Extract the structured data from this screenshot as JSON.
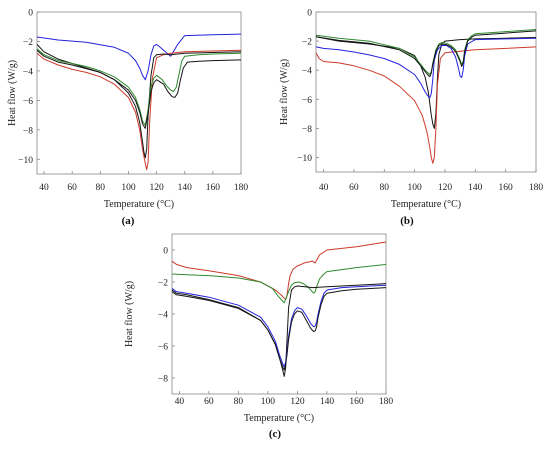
{
  "colors": {
    "blue": "#2222dd",
    "red": "#cc3a2a",
    "green": "#2e8b2e",
    "black": "#151515"
  },
  "chart_data": [
    {
      "type": "line",
      "panel_label": "(a)",
      "xlabel": "Temperature (°C)",
      "ylabel": "Heat flow (W/g)",
      "xlim": [
        35,
        180
      ],
      "ylim": [
        -11,
        0
      ],
      "xticks": [
        40,
        60,
        80,
        100,
        120,
        140,
        160,
        180
      ],
      "yticks": [
        0,
        -2,
        -4,
        -6,
        -8,
        -10
      ],
      "grid": false,
      "series": [
        {
          "color": "blue",
          "x": [
            35,
            50,
            70,
            90,
            100,
            105,
            108,
            110,
            112,
            114,
            116,
            118,
            120,
            122,
            125,
            130,
            135,
            140,
            160,
            180
          ],
          "y": [
            -1.7,
            -1.9,
            -2.05,
            -2.4,
            -2.8,
            -3.3,
            -3.8,
            -4.3,
            -4.6,
            -4.0,
            -2.9,
            -2.3,
            -2.2,
            -2.35,
            -2.6,
            -3.0,
            -2.2,
            -1.6,
            -1.55,
            -1.5
          ]
        },
        {
          "color": "red",
          "x": [
            35,
            40,
            50,
            60,
            70,
            80,
            90,
            100,
            105,
            108,
            110,
            112,
            113,
            114,
            115,
            117,
            120,
            125,
            130,
            140,
            160,
            180
          ],
          "y": [
            -2.8,
            -3.2,
            -3.6,
            -3.9,
            -4.1,
            -4.4,
            -4.9,
            -5.8,
            -6.8,
            -8.0,
            -9.3,
            -10.3,
            -10.7,
            -10.2,
            -7.5,
            -4.5,
            -3.1,
            -2.9,
            -2.8,
            -2.7,
            -2.65,
            -2.6
          ]
        },
        {
          "color": "black",
          "x": [
            35,
            40,
            50,
            60,
            70,
            80,
            90,
            100,
            105,
            108,
            110,
            111,
            112,
            113,
            114,
            116,
            118,
            120,
            125,
            130,
            140,
            160,
            180
          ],
          "y": [
            -2.2,
            -2.7,
            -3.2,
            -3.5,
            -3.8,
            -4.1,
            -4.6,
            -5.5,
            -6.4,
            -7.5,
            -8.8,
            -9.5,
            -9.9,
            -9.3,
            -7.0,
            -4.3,
            -3.1,
            -2.9,
            -2.85,
            -2.9,
            -2.8,
            -2.75,
            -2.7
          ]
        },
        {
          "color": "green",
          "x": [
            35,
            40,
            50,
            60,
            70,
            80,
            90,
            100,
            105,
            108,
            110,
            112,
            114,
            116,
            118,
            120,
            124,
            127,
            130,
            132,
            134,
            136,
            138,
            140,
            150,
            160,
            180
          ],
          "y": [
            -2.5,
            -2.9,
            -3.3,
            -3.5,
            -3.7,
            -4.0,
            -4.4,
            -5.1,
            -5.8,
            -6.6,
            -7.4,
            -7.7,
            -6.6,
            -5.0,
            -4.5,
            -4.3,
            -4.6,
            -5.0,
            -5.3,
            -5.4,
            -5.1,
            -4.2,
            -3.3,
            -3.0,
            -2.9,
            -2.85,
            -2.8
          ]
        },
        {
          "color": "black",
          "x": [
            35,
            40,
            50,
            60,
            70,
            80,
            90,
            100,
            105,
            108,
            110,
            112,
            114,
            116,
            118,
            120,
            125,
            128,
            131,
            133,
            135,
            137,
            139,
            142,
            150,
            160,
            180
          ],
          "y": [
            -2.6,
            -3.0,
            -3.4,
            -3.6,
            -3.85,
            -4.1,
            -4.6,
            -5.3,
            -6.0,
            -6.8,
            -7.6,
            -7.9,
            -6.9,
            -5.4,
            -4.8,
            -4.6,
            -4.9,
            -5.4,
            -5.75,
            -5.8,
            -5.5,
            -4.6,
            -3.8,
            -3.4,
            -3.35,
            -3.3,
            -3.25
          ]
        }
      ]
    },
    {
      "type": "line",
      "panel_label": "(b)",
      "xlabel": "Temperature (°C)",
      "ylabel": "Heat flow (W/g)",
      "xlim": [
        35,
        180
      ],
      "ylim": [
        -11,
        0
      ],
      "xticks": [
        40,
        60,
        80,
        100,
        120,
        140,
        160,
        180
      ],
      "yticks": [
        0,
        -2,
        -4,
        -6,
        -8,
        -10
      ],
      "grid": false,
      "series": [
        {
          "color": "black",
          "x": [
            35,
            50,
            70,
            90,
            100,
            104,
            107,
            109,
            110,
            111,
            112,
            113,
            114,
            115,
            116,
            118,
            120,
            130,
            140,
            160,
            180
          ],
          "y": [
            -1.7,
            -2.0,
            -2.2,
            -2.5,
            -3.0,
            -3.7,
            -4.5,
            -5.5,
            -6.3,
            -7.1,
            -7.7,
            -8.0,
            -7.0,
            -4.6,
            -2.9,
            -2.2,
            -2.0,
            -1.9,
            -1.85,
            -1.8,
            -1.75
          ]
        },
        {
          "color": "red",
          "x": [
            35,
            37,
            40,
            50,
            60,
            70,
            80,
            90,
            100,
            105,
            108,
            110,
            111,
            112,
            113,
            114,
            115,
            117,
            120,
            130,
            140,
            160,
            180
          ],
          "y": [
            -2.8,
            -3.2,
            -3.4,
            -3.5,
            -3.7,
            -4.0,
            -4.4,
            -5.1,
            -6.1,
            -7.1,
            -8.2,
            -9.3,
            -10.0,
            -10.4,
            -10.0,
            -8.0,
            -5.0,
            -3.2,
            -2.8,
            -2.7,
            -2.6,
            -2.5,
            -2.4
          ]
        },
        {
          "color": "blue",
          "x": [
            35,
            40,
            50,
            60,
            70,
            80,
            90,
            100,
            104,
            107,
            109,
            110,
            111,
            112,
            113,
            115,
            118,
            121,
            124,
            127,
            129,
            130,
            131,
            132,
            133,
            135,
            140,
            160,
            180
          ],
          "y": [
            -2.4,
            -2.5,
            -2.6,
            -2.75,
            -2.95,
            -3.2,
            -3.6,
            -4.3,
            -4.9,
            -5.5,
            -5.8,
            -5.9,
            -5.6,
            -4.6,
            -3.3,
            -2.6,
            -2.3,
            -2.3,
            -2.5,
            -3.1,
            -3.9,
            -4.4,
            -4.5,
            -4.0,
            -3.0,
            -2.2,
            -1.9,
            -1.85,
            -1.8
          ]
        },
        {
          "color": "green",
          "x": [
            35,
            50,
            70,
            90,
            100,
            104,
            107,
            109,
            110,
            111,
            112,
            114,
            116,
            118,
            121,
            124,
            127,
            130,
            131,
            132,
            133,
            135,
            138,
            140,
            160,
            180
          ],
          "y": [
            -1.6,
            -1.8,
            -2.0,
            -2.5,
            -3.1,
            -3.6,
            -4.0,
            -4.2,
            -4.3,
            -4.1,
            -3.5,
            -2.6,
            -2.2,
            -2.1,
            -2.15,
            -2.3,
            -2.6,
            -3.3,
            -3.6,
            -3.4,
            -2.6,
            -1.9,
            -1.6,
            -1.5,
            -1.35,
            -1.2
          ]
        },
        {
          "color": "black",
          "x": [
            35,
            50,
            70,
            90,
            100,
            104,
            107,
            109,
            110,
            111,
            112,
            114,
            116,
            118,
            121,
            124,
            127,
            130,
            131,
            132,
            133,
            135,
            138,
            140,
            160,
            180
          ],
          "y": [
            -1.7,
            -1.95,
            -2.15,
            -2.6,
            -3.2,
            -3.7,
            -4.1,
            -4.35,
            -4.45,
            -4.2,
            -3.6,
            -2.7,
            -2.3,
            -2.2,
            -2.25,
            -2.4,
            -2.7,
            -3.4,
            -3.75,
            -3.5,
            -2.7,
            -2.0,
            -1.7,
            -1.6,
            -1.45,
            -1.3
          ]
        }
      ]
    },
    {
      "type": "line",
      "panel_label": "(c)",
      "xlabel": "Temperature (°C)",
      "ylabel": "Heat flow (W/g)",
      "xlim": [
        35,
        180
      ],
      "ylim": [
        -9,
        1
      ],
      "xticks": [
        40,
        60,
        80,
        100,
        120,
        140,
        160,
        180
      ],
      "yticks": [
        0,
        -2,
        -4,
        -6,
        -8
      ],
      "grid": false,
      "series": [
        {
          "color": "red",
          "x": [
            35,
            38,
            45,
            60,
            80,
            95,
            105,
            110,
            112,
            113,
            114,
            115,
            117,
            120,
            125,
            130,
            132,
            135,
            140,
            150,
            160,
            170,
            180
          ],
          "y": [
            -0.7,
            -0.9,
            -1.1,
            -1.3,
            -1.6,
            -2.0,
            -2.5,
            -2.9,
            -3.1,
            -2.8,
            -2.1,
            -1.6,
            -1.2,
            -1.0,
            -0.8,
            -0.7,
            -0.8,
            -0.3,
            0.0,
            0.1,
            0.2,
            0.35,
            0.5
          ]
        },
        {
          "color": "green",
          "x": [
            35,
            45,
            60,
            80,
            95,
            103,
            107,
            110,
            111,
            112,
            114,
            116,
            118,
            121,
            124,
            127,
            130,
            131,
            132,
            133,
            135,
            138,
            140,
            160,
            180
          ],
          "y": [
            -1.5,
            -1.55,
            -1.6,
            -1.75,
            -2.0,
            -2.4,
            -2.9,
            -3.2,
            -3.3,
            -3.1,
            -2.6,
            -2.2,
            -2.05,
            -2.0,
            -2.1,
            -2.3,
            -2.6,
            -2.7,
            -2.6,
            -2.3,
            -1.8,
            -1.5,
            -1.35,
            -1.1,
            -0.9
          ]
        },
        {
          "color": "black",
          "x": [
            35,
            38,
            45,
            60,
            80,
            95,
            100,
            105,
            108,
            110,
            111,
            112,
            113,
            114,
            116,
            118,
            120,
            125,
            130,
            140,
            160,
            180
          ],
          "y": [
            -2.5,
            -2.7,
            -2.8,
            -3.1,
            -3.6,
            -4.4,
            -5.0,
            -5.9,
            -6.8,
            -7.5,
            -7.9,
            -7.4,
            -5.5,
            -3.6,
            -2.5,
            -2.3,
            -2.25,
            -2.3,
            -2.35,
            -2.3,
            -2.2,
            -2.1
          ]
        },
        {
          "color": "blue",
          "x": [
            35,
            38,
            45,
            60,
            80,
            95,
            100,
            105,
            108,
            110,
            111,
            112,
            113,
            114,
            116,
            118,
            120,
            123,
            126,
            129,
            131,
            132,
            133,
            134,
            136,
            138,
            140,
            150,
            160,
            180
          ],
          "y": [
            -2.4,
            -2.6,
            -2.7,
            -2.95,
            -3.45,
            -4.2,
            -4.8,
            -5.7,
            -6.6,
            -7.1,
            -7.3,
            -7.0,
            -6.3,
            -5.4,
            -4.3,
            -3.8,
            -3.6,
            -3.7,
            -4.1,
            -4.6,
            -4.8,
            -4.75,
            -4.5,
            -4.0,
            -3.2,
            -2.7,
            -2.5,
            -2.35,
            -2.3,
            -2.2
          ]
        },
        {
          "color": "black",
          "x": [
            35,
            38,
            45,
            60,
            80,
            95,
            100,
            105,
            108,
            110,
            111,
            112,
            113,
            114,
            116,
            118,
            120,
            123,
            126,
            129,
            131,
            132,
            133,
            134,
            136,
            138,
            140,
            150,
            160,
            180
          ],
          "y": [
            -2.6,
            -2.8,
            -2.9,
            -3.15,
            -3.65,
            -4.4,
            -5.0,
            -5.9,
            -6.8,
            -7.3,
            -7.5,
            -7.2,
            -6.5,
            -5.6,
            -4.5,
            -4.0,
            -3.8,
            -3.9,
            -4.4,
            -4.9,
            -5.1,
            -5.05,
            -4.8,
            -4.2,
            -3.4,
            -2.9,
            -2.7,
            -2.55,
            -2.45,
            -2.35
          ]
        }
      ]
    }
  ]
}
